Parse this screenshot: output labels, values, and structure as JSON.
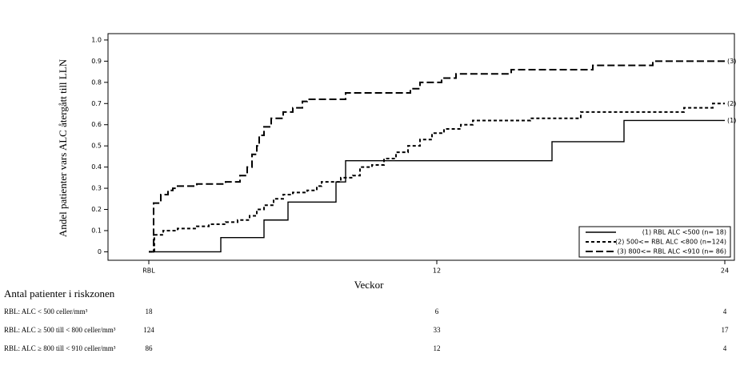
{
  "chart_data": {
    "type": "step",
    "y_label": "Andel patienter vars ALC återgått till LLN",
    "x_label": "Veckor",
    "xlim": [
      -1.7,
      24.4
    ],
    "ylim": [
      -0.04,
      1.03
    ],
    "xticks": [
      {
        "value": 0,
        "label": "RBL"
      },
      12,
      24
    ],
    "yticks": [
      0,
      0.1,
      0.2,
      0.3,
      0.4,
      0.5,
      0.6,
      0.7,
      0.8,
      0.9,
      {
        "value": 1,
        "label": "1.0"
      }
    ],
    "legend": "lower right",
    "series": [
      {
        "name": "(1) RBL ALC <500 (n= 18)",
        "end_label": "(1)",
        "color": "#000000",
        "line_style": "solid",
        "x": [
          0,
          3.0,
          4.8,
          5.8,
          7.8,
          8.2,
          16.8,
          19.8,
          24
        ],
        "values": [
          0,
          0.067,
          0.15,
          0.235,
          0.33,
          0.43,
          0.52,
          0.62,
          0.62
        ]
      },
      {
        "name": "(2) 500<= RBL ALC <800 (n=124)",
        "end_label": "(2)",
        "color": "#000000",
        "line_style": "short",
        "x": [
          0,
          0.23,
          0.6,
          1.2,
          2,
          2.5,
          3.2,
          3.7,
          4.2,
          4.5,
          4.8,
          5.2,
          5.6,
          6,
          6.6,
          7,
          7.2,
          8,
          8.5,
          8.8,
          9.3,
          9.8,
          10.3,
          10.8,
          11.3,
          11.8,
          12.3,
          13,
          13.5,
          15.9,
          18,
          22.3,
          23.5,
          24
        ],
        "values": [
          0,
          0.08,
          0.1,
          0.11,
          0.12,
          0.13,
          0.14,
          0.15,
          0.17,
          0.2,
          0.22,
          0.25,
          0.27,
          0.28,
          0.29,
          0.31,
          0.33,
          0.35,
          0.36,
          0.4,
          0.41,
          0.44,
          0.47,
          0.5,
          0.53,
          0.56,
          0.58,
          0.6,
          0.62,
          0.63,
          0.66,
          0.68,
          0.7,
          0.7
        ]
      },
      {
        "name": "(3) 800<= RBL ALC <910 (n= 86)",
        "end_label": "(3)",
        "color": "#000000",
        "line_style": "long",
        "x": [
          0,
          0.2,
          0.5,
          0.8,
          1,
          1.2,
          2,
          3.2,
          3.8,
          4.1,
          4.3,
          4.5,
          4.6,
          4.8,
          5.1,
          5.6,
          6,
          6.4,
          6.6,
          8.2,
          10.9,
          11.3,
          12.2,
          12.8,
          15.1,
          18.5,
          21,
          24
        ],
        "values": [
          0,
          0.23,
          0.27,
          0.29,
          0.3,
          0.31,
          0.32,
          0.33,
          0.36,
          0.4,
          0.46,
          0.5,
          0.55,
          0.59,
          0.63,
          0.66,
          0.68,
          0.71,
          0.72,
          0.75,
          0.77,
          0.8,
          0.82,
          0.84,
          0.86,
          0.88,
          0.9,
          0.9
        ]
      }
    ],
    "risk_table": {
      "title": "Antal patienter i riskzonen",
      "rows": [
        {
          "label": "RBL: ALC < 500 celler/mm³",
          "counts": [
            18,
            6,
            4
          ]
        },
        {
          "label": "RBL: ALC ≥ 500 till < 800 celler/mm³",
          "counts": [
            124,
            33,
            17
          ]
        },
        {
          "label": "RBL: ALC ≥ 800 till < 910 celler/mm³",
          "counts": [
            86,
            12,
            4
          ]
        }
      ]
    }
  }
}
